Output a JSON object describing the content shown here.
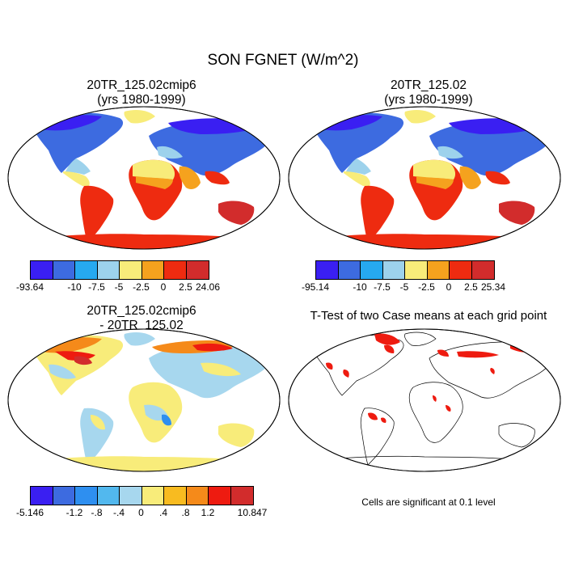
{
  "title": "SON FGNET (W/m^2)",
  "panels": [
    {
      "title_line1": "20TR_125.02cmip6",
      "title_line2": "(yrs 1980-1999)"
    },
    {
      "title_line1": "20TR_125.02",
      "title_line2": "(yrs 1980-1999)"
    },
    {
      "title_line1": "20TR_125.02cmip6",
      "title_line2": "- 20TR_125.02"
    },
    {
      "title_line1": "T-Test of two Case means at each grid point",
      "title_line2": ""
    }
  ],
  "colorbars": [
    {
      "labels": [
        "-93.64",
        "-10",
        "-7.5",
        "-5",
        "-2.5",
        "0",
        "2.5",
        "24.06"
      ],
      "colors": [
        "#3a1ff2",
        "#3d6be0",
        "#26a9f0",
        "#9dd2ec",
        "#f8ec7a",
        "#f5a21e",
        "#ee2b10",
        "#d22c2c"
      ]
    },
    {
      "labels": [
        "-95.14",
        "-10",
        "-7.5",
        "-5",
        "-2.5",
        "0",
        "2.5",
        "25.34"
      ],
      "colors": [
        "#3a1ff2",
        "#3d6be0",
        "#26a9f0",
        "#9dd2ec",
        "#f8ec7a",
        "#f5a21e",
        "#ee2b10",
        "#d22c2c"
      ]
    },
    {
      "labels": [
        "-5.146",
        "-1.2",
        "-.8",
        "-.4",
        "0",
        ".4",
        ".8",
        "1.2",
        "10.847"
      ],
      "colors": [
        "#3a1ff2",
        "#3d6be0",
        "#2e8ff0",
        "#52b8ee",
        "#a7d7ee",
        "#f8ec7a",
        "#f8bb20",
        "#f58a1a",
        "#ee1b10",
        "#d22c2c"
      ]
    }
  ],
  "significance_note": "Cells are significant at 0.1 level"
}
